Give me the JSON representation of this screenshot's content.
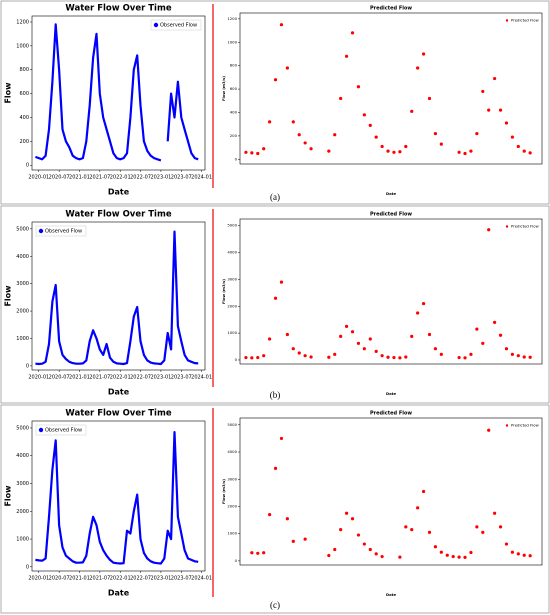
{
  "captions": [
    "(a)",
    "(b)",
    "(c)"
  ],
  "chart_data": [
    {
      "type": "line",
      "title": "Water Flow Over Time",
      "xlabel": "Date",
      "ylabel": "Flow",
      "legend": "upper right",
      "x": [
        "2019-12",
        "2020-01",
        "2020-02",
        "2020-03",
        "2020-04",
        "2020-05",
        "2020-06",
        "2020-07",
        "2020-08",
        "2020-09",
        "2020-10",
        "2020-11",
        "2020-12",
        "2021-01",
        "2021-02",
        "2021-03",
        "2021-04",
        "2021-05",
        "2021-06",
        "2021-07",
        "2021-08",
        "2021-09",
        "2021-10",
        "2021-11",
        "2021-12",
        "2022-01",
        "2022-02",
        "2022-03",
        "2022-04",
        "2022-05",
        "2022-06",
        "2022-07",
        "2022-08",
        "2022-09",
        "2022-10",
        "2022-11",
        "2022-12",
        "2023-01",
        "2023-02",
        "2023-03",
        "2023-04",
        "2023-05",
        "2023-06",
        "2023-07",
        "2023-08",
        "2023-09",
        "2023-10",
        "2023-11",
        "2023-12"
      ],
      "series": [
        {
          "name": "Observed Flow",
          "color": "#0000ff",
          "values": [
            70,
            60,
            50,
            80,
            300,
            700,
            1180,
            800,
            300,
            200,
            150,
            80,
            60,
            50,
            60,
            200,
            500,
            900,
            1100,
            600,
            400,
            300,
            200,
            100,
            60,
            50,
            60,
            100,
            400,
            800,
            920,
            500,
            200,
            120,
            80,
            60,
            50,
            40,
            null,
            200,
            600,
            400,
            700,
            400,
            300,
            200,
            100,
            60,
            50
          ]
        }
      ],
      "xlim": [
        "2019-11",
        "2024-02"
      ],
      "xticks": [
        "2020-01",
        "2020-07",
        "2021-01",
        "2021-07",
        "2022-01",
        "2022-07",
        "2023-01",
        "2023-07",
        "2024-01"
      ],
      "ylim": [
        -40,
        1250
      ],
      "yticks": [
        0,
        200,
        400,
        600,
        800,
        1000,
        1200
      ]
    },
    {
      "type": "scatter",
      "title": "Predicted Flow",
      "xlabel": "Date",
      "ylabel": "Flow (m3/s)",
      "legend": "upper right",
      "x": [
        "2019-12",
        "2020-01",
        "2020-02",
        "2020-03",
        "2020-04",
        "2020-05",
        "2020-06",
        "2020-07",
        "2020-08",
        "2020-09",
        "2020-10",
        "2020-11",
        "2020-12",
        "2021-01",
        "2021-02",
        "2021-03",
        "2021-04",
        "2021-05",
        "2021-06",
        "2021-07",
        "2021-08",
        "2021-09",
        "2021-10",
        "2021-11",
        "2021-12",
        "2022-01",
        "2022-02",
        "2022-03",
        "2022-04",
        "2022-05",
        "2022-06",
        "2022-07",
        "2022-08",
        "2022-09",
        "2022-10",
        "2022-11",
        "2022-12",
        "2023-01",
        "2023-02",
        "2023-03",
        "2023-04",
        "2023-05",
        "2023-06",
        "2023-07",
        "2023-08",
        "2023-09",
        "2023-10",
        "2023-11",
        "2023-12"
      ],
      "series": [
        {
          "name": "Predicted Flow",
          "color": "#ff0000",
          "values": [
            60,
            55,
            50,
            90,
            320,
            680,
            1150,
            780,
            320,
            210,
            140,
            90,
            null,
            null,
            70,
            210,
            520,
            880,
            1080,
            620,
            380,
            290,
            190,
            110,
            70,
            60,
            65,
            110,
            410,
            780,
            900,
            520,
            220,
            130,
            null,
            null,
            60,
            50,
            70,
            220,
            580,
            420,
            690,
            420,
            310,
            190,
            110,
            70,
            55
          ]
        }
      ],
      "xlim": [
        "2019-11",
        "2024-02"
      ],
      "ylim": [
        -40,
        1250
      ],
      "yticks": [
        0,
        200,
        400,
        600,
        800,
        1000,
        1200
      ]
    },
    {
      "type": "line",
      "title": "Water Flow Over Time",
      "xlabel": "Date",
      "ylabel": "Flow",
      "legend": "upper left",
      "x": [
        "2019-12",
        "2020-01",
        "2020-02",
        "2020-03",
        "2020-04",
        "2020-05",
        "2020-06",
        "2020-07",
        "2020-08",
        "2020-09",
        "2020-10",
        "2020-11",
        "2020-12",
        "2021-01",
        "2021-02",
        "2021-03",
        "2021-04",
        "2021-05",
        "2021-06",
        "2021-07",
        "2021-08",
        "2021-09",
        "2021-10",
        "2021-11",
        "2021-12",
        "2022-01",
        "2022-02",
        "2022-03",
        "2022-04",
        "2022-05",
        "2022-06",
        "2022-07",
        "2022-08",
        "2022-09",
        "2022-10",
        "2022-11",
        "2022-12",
        "2023-01",
        "2023-02",
        "2023-03",
        "2023-04",
        "2023-05",
        "2023-06",
        "2023-07",
        "2023-08",
        "2023-09",
        "2023-10",
        "2023-11",
        "2023-12"
      ],
      "series": [
        {
          "name": "Observed Flow",
          "color": "#0000ff",
          "values": [
            80,
            70,
            80,
            150,
            800,
            2350,
            2950,
            900,
            400,
            250,
            150,
            100,
            80,
            80,
            90,
            200,
            900,
            1300,
            1000,
            600,
            400,
            800,
            300,
            150,
            90,
            80,
            70,
            100,
            900,
            1800,
            2150,
            900,
            400,
            200,
            120,
            90,
            80,
            70,
            200,
            1200,
            600,
            4900,
            1450,
            900,
            400,
            200,
            150,
            100,
            90
          ]
        }
      ],
      "xlim": [
        "2019-11",
        "2024-02"
      ],
      "xticks": [
        "2020-01",
        "2020-07",
        "2021-01",
        "2021-07",
        "2022-01",
        "2022-07",
        "2023-01",
        "2023-07",
        "2024-01"
      ],
      "ylim": [
        -150,
        5250
      ],
      "yticks": [
        0,
        1000,
        2000,
        3000,
        4000,
        5000
      ]
    },
    {
      "type": "scatter",
      "title": "Predicted Flow",
      "xlabel": "Date",
      "ylabel": "Flow (m3/s)",
      "legend": "upper right",
      "x": [
        "2019-12",
        "2020-01",
        "2020-02",
        "2020-03",
        "2020-04",
        "2020-05",
        "2020-06",
        "2020-07",
        "2020-08",
        "2020-09",
        "2020-10",
        "2020-11",
        "2020-12",
        "2021-01",
        "2021-02",
        "2021-03",
        "2021-04",
        "2021-05",
        "2021-06",
        "2021-07",
        "2021-08",
        "2021-09",
        "2021-10",
        "2021-11",
        "2021-12",
        "2022-01",
        "2022-02",
        "2022-03",
        "2022-04",
        "2022-05",
        "2022-06",
        "2022-07",
        "2022-08",
        "2022-09",
        "2022-10",
        "2022-11",
        "2022-12",
        "2023-01",
        "2023-02",
        "2023-03",
        "2023-04",
        "2023-05",
        "2023-06",
        "2023-07",
        "2023-08",
        "2023-09",
        "2023-10",
        "2023-11",
        "2023-12"
      ],
      "series": [
        {
          "name": "Predicted Flow",
          "color": "#ff0000",
          "values": [
            90,
            80,
            90,
            160,
            780,
            2300,
            2900,
            950,
            420,
            260,
            160,
            110,
            null,
            null,
            100,
            210,
            880,
            1250,
            1050,
            620,
            420,
            780,
            320,
            160,
            100,
            90,
            80,
            110,
            880,
            1750,
            2100,
            950,
            420,
            210,
            null,
            null,
            90,
            80,
            210,
            1150,
            620,
            4850,
            1400,
            920,
            420,
            210,
            160,
            110,
            100
          ]
        }
      ],
      "xlim": [
        "2019-11",
        "2024-02"
      ],
      "ylim": [
        -150,
        5250
      ],
      "yticks": [
        0,
        1000,
        2000,
        3000,
        4000,
        5000
      ]
    },
    {
      "type": "line",
      "title": "Water Flow Over Time",
      "xlabel": "Date",
      "ylabel": "Flow",
      "legend": "upper left",
      "x": [
        "2019-12",
        "2020-01",
        "2020-02",
        "2020-03",
        "2020-04",
        "2020-05",
        "2020-06",
        "2020-07",
        "2020-08",
        "2020-09",
        "2020-10",
        "2020-11",
        "2020-12",
        "2021-01",
        "2021-02",
        "2021-03",
        "2021-04",
        "2021-05",
        "2021-06",
        "2021-07",
        "2021-08",
        "2021-09",
        "2021-10",
        "2021-11",
        "2021-12",
        "2022-01",
        "2022-02",
        "2022-03",
        "2022-04",
        "2022-05",
        "2022-06",
        "2022-07",
        "2022-08",
        "2022-09",
        "2022-10",
        "2022-11",
        "2022-12",
        "2023-01",
        "2023-02",
        "2023-03",
        "2023-04",
        "2023-05",
        "2023-06",
        "2023-07",
        "2023-08",
        "2023-09",
        "2023-10",
        "2023-11",
        "2023-12"
      ],
      "series": [
        {
          "name": "Observed Flow",
          "color": "#0000ff",
          "values": [
            250,
            230,
            220,
            300,
            1800,
            3500,
            4550,
            1500,
            700,
            400,
            300,
            200,
            150,
            150,
            160,
            400,
            1200,
            1800,
            1500,
            900,
            600,
            400,
            250,
            150,
            130,
            120,
            130,
            1300,
            1200,
            2000,
            2600,
            1000,
            500,
            300,
            200,
            150,
            130,
            120,
            300,
            1300,
            1000,
            4850,
            1800,
            1200,
            600,
            300,
            250,
            200,
            180
          ]
        }
      ],
      "xlim": [
        "2019-11",
        "2024-02"
      ],
      "xticks": [
        "2020-01",
        "2020-07",
        "2021-01",
        "2021-07",
        "2022-01",
        "2022-07",
        "2023-01",
        "2023-07",
        "2024-01"
      ],
      "ylim": [
        -150,
        5250
      ],
      "yticks": [
        0,
        1000,
        2000,
        3000,
        4000,
        5000
      ]
    },
    {
      "type": "scatter",
      "title": "Predicted Flow",
      "xlabel": "Date",
      "ylabel": "Flow (m3/s)",
      "legend": "upper right",
      "x": [
        "2019-12",
        "2020-01",
        "2020-02",
        "2020-03",
        "2020-04",
        "2020-05",
        "2020-06",
        "2020-07",
        "2020-08",
        "2020-09",
        "2020-10",
        "2020-11",
        "2020-12",
        "2021-01",
        "2021-02",
        "2021-03",
        "2021-04",
        "2021-05",
        "2021-06",
        "2021-07",
        "2021-08",
        "2021-09",
        "2021-10",
        "2021-11",
        "2021-12",
        "2022-01",
        "2022-02",
        "2022-03",
        "2022-04",
        "2022-05",
        "2022-06",
        "2022-07",
        "2022-08",
        "2022-09",
        "2022-10",
        "2022-11",
        "2022-12",
        "2023-01",
        "2023-02",
        "2023-03",
        "2023-04",
        "2023-05",
        "2023-06",
        "2023-07",
        "2023-08",
        "2023-09",
        "2023-10",
        "2023-11",
        "2023-12"
      ],
      "series": [
        {
          "name": "Predicted Flow",
          "color": "#ff0000",
          "values": [
            null,
            300,
            280,
            300,
            1700,
            3400,
            4500,
            1550,
            720,
            null,
            800,
            null,
            null,
            null,
            200,
            420,
            1150,
            1750,
            1550,
            950,
            620,
            420,
            260,
            160,
            null,
            null,
            140,
            1250,
            1150,
            1950,
            2550,
            1050,
            520,
            320,
            210,
            160,
            140,
            130,
            310,
            1250,
            1050,
            4800,
            1750,
            1250,
            620,
            320,
            260,
            210,
            190
          ]
        }
      ],
      "xlim": [
        "2019-11",
        "2024-02"
      ],
      "ylim": [
        -150,
        5250
      ],
      "yticks": [
        0,
        1000,
        2000,
        3000,
        4000,
        5000
      ]
    }
  ]
}
